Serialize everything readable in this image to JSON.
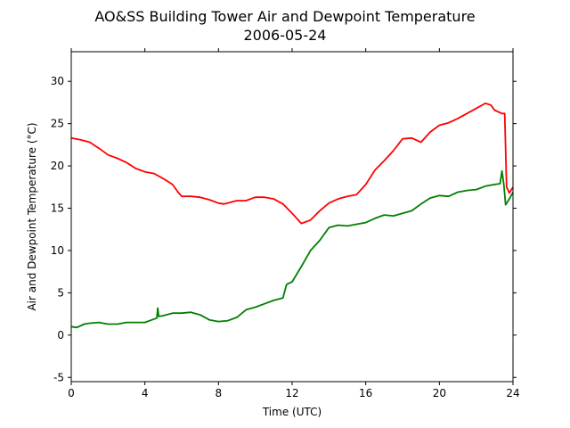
{
  "chart_data": {
    "type": "line",
    "title": "AO&SS Building Tower Air and Dewpoint Temperature",
    "subtitle": "2006-05-24",
    "xlabel": "Time (UTC)",
    "ylabel": "Air and Dewpoint Temperature (°C)",
    "xlim": [
      0,
      24
    ],
    "ylim": [
      -5.5,
      33.5
    ],
    "xticks": [
      0,
      4,
      8,
      12,
      16,
      20,
      24
    ],
    "yticks": [
      -5,
      0,
      5,
      10,
      15,
      20,
      25,
      30
    ],
    "grid": false,
    "series": [
      {
        "color": "#ff0000",
        "points": [
          [
            0,
            23.3
          ],
          [
            0.5,
            23.1
          ],
          [
            1,
            22.8
          ],
          [
            1.5,
            22.1
          ],
          [
            2,
            21.3
          ],
          [
            2.5,
            20.9
          ],
          [
            3,
            20.4
          ],
          [
            3.5,
            19.7
          ],
          [
            4,
            19.3
          ],
          [
            4.5,
            19.1
          ],
          [
            5,
            18.5
          ],
          [
            5.5,
            17.8
          ],
          [
            5.8,
            16.9
          ],
          [
            6,
            16.4
          ],
          [
            6.5,
            16.4
          ],
          [
            7,
            16.3
          ],
          [
            7.5,
            16.0
          ],
          [
            8,
            15.6
          ],
          [
            8.3,
            15.5
          ],
          [
            9,
            15.9
          ],
          [
            9.5,
            15.9
          ],
          [
            10,
            16.3
          ],
          [
            10.5,
            16.3
          ],
          [
            11,
            16.1
          ],
          [
            11.5,
            15.5
          ],
          [
            12,
            14.4
          ],
          [
            12.5,
            13.2
          ],
          [
            13,
            13.6
          ],
          [
            13.5,
            14.7
          ],
          [
            14,
            15.6
          ],
          [
            14.5,
            16.1
          ],
          [
            15,
            16.4
          ],
          [
            15.5,
            16.6
          ],
          [
            16,
            17.8
          ],
          [
            16.5,
            19.5
          ],
          [
            17,
            20.6
          ],
          [
            17.5,
            21.8
          ],
          [
            18,
            23.2
          ],
          [
            18.5,
            23.3
          ],
          [
            19,
            22.8
          ],
          [
            19.5,
            24.0
          ],
          [
            20,
            24.8
          ],
          [
            20.5,
            25.1
          ],
          [
            21,
            25.6
          ],
          [
            21.5,
            26.2
          ],
          [
            22,
            26.8
          ],
          [
            22.5,
            27.4
          ],
          [
            22.8,
            27.2
          ],
          [
            23,
            26.6
          ],
          [
            23.4,
            26.2
          ],
          [
            23.55,
            26.2
          ],
          [
            23.65,
            17.5
          ],
          [
            23.8,
            16.8
          ],
          [
            24,
            17.5
          ]
        ]
      },
      {
        "color": "#008000",
        "points": [
          [
            0,
            1.0
          ],
          [
            0.3,
            0.9
          ],
          [
            0.7,
            1.3
          ],
          [
            1,
            1.4
          ],
          [
            1.5,
            1.5
          ],
          [
            2,
            1.3
          ],
          [
            2.5,
            1.3
          ],
          [
            3,
            1.5
          ],
          [
            3.5,
            1.5
          ],
          [
            4,
            1.5
          ],
          [
            4.5,
            1.9
          ],
          [
            4.65,
            2.0
          ],
          [
            4.7,
            3.2
          ],
          [
            4.75,
            2.2
          ],
          [
            5,
            2.3
          ],
          [
            5.5,
            2.6
          ],
          [
            6,
            2.6
          ],
          [
            6.5,
            2.7
          ],
          [
            7,
            2.4
          ],
          [
            7.5,
            1.8
          ],
          [
            8,
            1.6
          ],
          [
            8.5,
            1.7
          ],
          [
            9,
            2.1
          ],
          [
            9.5,
            3.0
          ],
          [
            10,
            3.3
          ],
          [
            10.5,
            3.7
          ],
          [
            11,
            4.1
          ],
          [
            11.5,
            4.4
          ],
          [
            11.7,
            6.0
          ],
          [
            12,
            6.3
          ],
          [
            12.5,
            8.1
          ],
          [
            13,
            10.0
          ],
          [
            13.5,
            11.2
          ],
          [
            14,
            12.7
          ],
          [
            14.5,
            13.0
          ],
          [
            15,
            12.9
          ],
          [
            15.5,
            13.1
          ],
          [
            16,
            13.3
          ],
          [
            16.5,
            13.8
          ],
          [
            17,
            14.2
          ],
          [
            17.5,
            14.1
          ],
          [
            18,
            14.4
          ],
          [
            18.5,
            14.7
          ],
          [
            19,
            15.5
          ],
          [
            19.5,
            16.2
          ],
          [
            20,
            16.5
          ],
          [
            20.5,
            16.4
          ],
          [
            21,
            16.9
          ],
          [
            21.5,
            17.1
          ],
          [
            22,
            17.2
          ],
          [
            22.5,
            17.6
          ],
          [
            23,
            17.8
          ],
          [
            23.3,
            17.9
          ],
          [
            23.4,
            19.4
          ],
          [
            23.5,
            17.8
          ],
          [
            23.6,
            15.4
          ],
          [
            23.8,
            16.1
          ],
          [
            24,
            16.9
          ]
        ]
      }
    ]
  }
}
